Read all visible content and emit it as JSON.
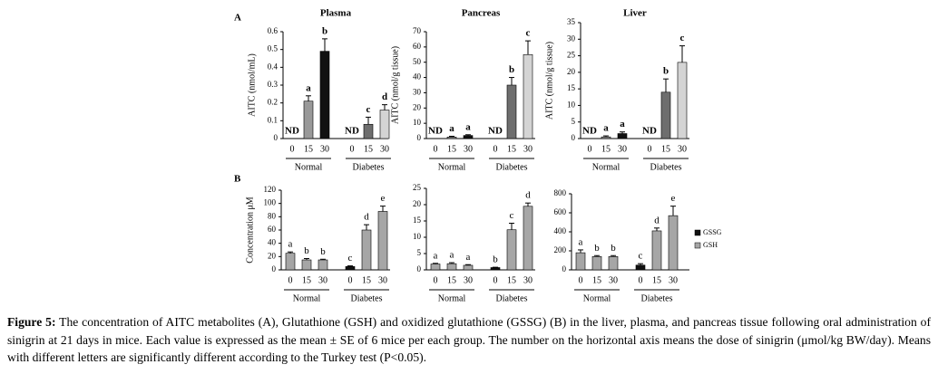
{
  "panel_labels": [
    "A",
    "B"
  ],
  "chart_data": [
    {
      "type": "bar",
      "title": "Plasma",
      "ylabel": "AITC (nmol/mL)",
      "ylim": [
        0,
        0.6
      ],
      "yticks": [
        0,
        0.1,
        0.2,
        0.3,
        0.4,
        0.5,
        0.6
      ],
      "categories": [
        "0",
        "15",
        "30",
        "0",
        "15",
        "30"
      ],
      "groups": [
        "Normal",
        "Diabetes"
      ],
      "values": [
        null,
        0.21,
        0.49,
        null,
        0.08,
        0.16
      ],
      "errors": [
        null,
        0.03,
        0.07,
        null,
        0.04,
        0.03
      ],
      "letters": [
        "ND",
        "a",
        "b",
        "ND",
        "c",
        "d"
      ],
      "colors": [
        "#999999",
        "#999999",
        "#111111",
        "#999999",
        "#6e6e6e",
        "#d4d4d4"
      ]
    },
    {
      "type": "bar",
      "title": "Pancreas",
      "ylabel": "AITC (nmol/g tissue)",
      "ylim": [
        0,
        70
      ],
      "yticks": [
        0,
        10,
        20,
        30,
        40,
        50,
        60,
        70
      ],
      "categories": [
        "0",
        "15",
        "30",
        "0",
        "15",
        "30"
      ],
      "groups": [
        "Normal",
        "Diabetes"
      ],
      "values": [
        null,
        1,
        2,
        null,
        35,
        55
      ],
      "errors": [
        null,
        0.5,
        0.5,
        null,
        5,
        9
      ],
      "letters": [
        "ND",
        "a",
        "a",
        "ND",
        "b",
        "c"
      ],
      "colors": [
        "#999999",
        "#999999",
        "#111111",
        "#999999",
        "#6e6e6e",
        "#d4d4d4"
      ]
    },
    {
      "type": "bar",
      "title": "Liver",
      "ylabel": "AITC (nmol/g tissue)",
      "ylim": [
        0,
        35
      ],
      "yticks": [
        0,
        5,
        10,
        15,
        20,
        25,
        30,
        35
      ],
      "categories": [
        "0",
        "15",
        "30",
        "0",
        "15",
        "30"
      ],
      "groups": [
        "Normal",
        "Diabetes"
      ],
      "values": [
        null,
        0.5,
        1.5,
        null,
        14,
        23
      ],
      "errors": [
        null,
        0.3,
        0.5,
        null,
        4,
        5
      ],
      "letters": [
        "ND",
        "a",
        "a",
        "ND",
        "b",
        "c"
      ],
      "colors": [
        "#999999",
        "#999999",
        "#111111",
        "#999999",
        "#6e6e6e",
        "#d4d4d4"
      ]
    },
    {
      "type": "bar",
      "ylabel": "Concentration μM",
      "ylim": [
        0,
        120
      ],
      "yticks": [
        0,
        20,
        40,
        60,
        80,
        100,
        120
      ],
      "categories": [
        "0",
        "15",
        "30",
        "0",
        "15",
        "30"
      ],
      "groups": [
        "Normal",
        "Diabetes"
      ],
      "series": [
        {
          "color": "#111111",
          "values": [
            null,
            null,
            null,
            5,
            null,
            null
          ],
          "errors": [
            null,
            null,
            null,
            1,
            null,
            null
          ]
        },
        {
          "color": "#a6a6a6",
          "values": [
            25,
            15,
            15,
            null,
            60,
            88
          ],
          "errors": [
            2,
            2,
            1,
            null,
            8,
            8
          ]
        }
      ],
      "letters": [
        "a",
        "b",
        "b",
        "c",
        "d",
        "e"
      ]
    },
    {
      "type": "bar",
      "ylim": [
        0,
        25
      ],
      "yticks": [
        0,
        5,
        10,
        15,
        20,
        25
      ],
      "categories": [
        "0",
        "15",
        "30",
        "0",
        "15",
        "30"
      ],
      "groups": [
        "Normal",
        "Diabetes"
      ],
      "series": [
        {
          "color": "#111111",
          "values": [
            null,
            null,
            null,
            0.7,
            null,
            null
          ],
          "errors": [
            null,
            null,
            null,
            0.1,
            null,
            null
          ]
        },
        {
          "color": "#a6a6a6",
          "values": [
            1.8,
            1.9,
            1.4,
            null,
            12.3,
            19.5
          ],
          "errors": [
            0.2,
            0.3,
            0.2,
            null,
            2,
            1
          ]
        }
      ],
      "letters": [
        "a",
        "a",
        "a",
        "b",
        "c",
        "d"
      ]
    },
    {
      "type": "bar",
      "ylim": [
        0,
        800
      ],
      "yticks": [
        0,
        200,
        400,
        600,
        800
      ],
      "categories": [
        "0",
        "15",
        "30",
        "0",
        "15",
        "30"
      ],
      "groups": [
        "Normal",
        "Diabetes"
      ],
      "series": [
        {
          "name": "GSSG",
          "color": "#111111",
          "values": [
            null,
            null,
            null,
            50,
            null,
            null
          ],
          "errors": [
            null,
            null,
            null,
            15,
            null,
            null
          ]
        },
        {
          "name": "GSH",
          "color": "#a6a6a6",
          "values": [
            180,
            140,
            140,
            null,
            410,
            570
          ],
          "errors": [
            30,
            10,
            10,
            null,
            30,
            100
          ]
        }
      ],
      "letters": [
        "a",
        "b",
        "b",
        "c",
        "d",
        "e"
      ]
    }
  ],
  "caption": {
    "label": "Figure 5:",
    "text": "The concentration of AITC metabolites (A), Glutathione (GSH) and oxidized glutathione (GSSG) (B) in the liver, plasma, and pancreas tissue following oral administration of sinigrin at 21 days in mice. Each value is expressed as the mean ± SE of 6 mice per each group. The number on the horizontal axis means the dose of sinigrin (μmol/kg BW/day). Means with different letters are significantly different according to the Turkey test (P<0.05)."
  }
}
